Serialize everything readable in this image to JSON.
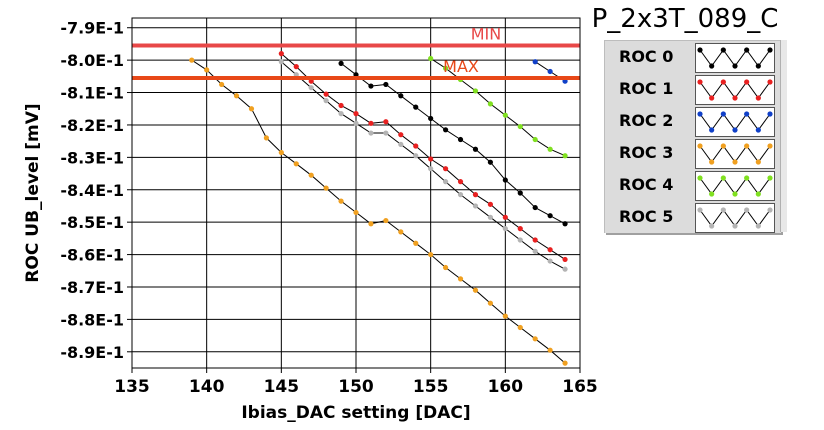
{
  "chart_data": {
    "type": "line",
    "title": "P_2x3T_089_C",
    "xlabel": "Ibias_DAC setting [DAC]",
    "ylabel": "ROC UB_level [mV]",
    "xlim": [
      135,
      165
    ],
    "ylim": [
      -0.895,
      -0.787
    ],
    "x_ticks": [
      135,
      140,
      145,
      150,
      155,
      160,
      165
    ],
    "y_ticks": [
      -0.79,
      -0.8,
      -0.81,
      -0.82,
      -0.83,
      -0.84,
      -0.85,
      -0.86,
      -0.87,
      -0.88,
      -0.89
    ],
    "y_tick_labels": [
      "-7.9E-1",
      "-8.0E-1",
      "-8.1E-1",
      "-8.2E-1",
      "-8.3E-1",
      "-8.4E-1",
      "-8.5E-1",
      "-8.6E-1",
      "-8.7E-1",
      "-8.8E-1",
      "-8.9E-1"
    ],
    "grid": true,
    "legend_position": "right",
    "reference_lines": [
      {
        "name": "MIN",
        "y": -0.7955,
        "color": "#e84848"
      },
      {
        "name": "MAX",
        "y": -0.8055,
        "color": "#e84818"
      }
    ],
    "series": [
      {
        "name": "ROC 0",
        "color": "#000000",
        "x": [
          149,
          150,
          151,
          152,
          153,
          154,
          155,
          156,
          157,
          158,
          159,
          160,
          161,
          162,
          163,
          164
        ],
        "y": [
          -0.801,
          -0.8045,
          -0.808,
          -0.8075,
          -0.811,
          -0.8145,
          -0.818,
          -0.8215,
          -0.8245,
          -0.8275,
          -0.8315,
          -0.837,
          -0.841,
          -0.8455,
          -0.848,
          -0.8505
        ]
      },
      {
        "name": "ROC 1",
        "color": "#e82020",
        "x": [
          145,
          146,
          147,
          148,
          149,
          150,
          151,
          152,
          153,
          154,
          155,
          156,
          157,
          158,
          159,
          160,
          161,
          162,
          163,
          164
        ],
        "y": [
          -0.798,
          -0.802,
          -0.8065,
          -0.8105,
          -0.814,
          -0.8165,
          -0.8195,
          -0.819,
          -0.823,
          -0.8265,
          -0.8305,
          -0.8335,
          -0.8375,
          -0.8415,
          -0.8445,
          -0.8485,
          -0.852,
          -0.8555,
          -0.8585,
          -0.8615
        ]
      },
      {
        "name": "ROC 2",
        "color": "#1040c8",
        "x": [
          162,
          163,
          164
        ],
        "y": [
          -0.8005,
          -0.8035,
          -0.8065
        ]
      },
      {
        "name": "ROC 3",
        "color": "#f0a020",
        "x": [
          139,
          140,
          141,
          142,
          143,
          144,
          145,
          146,
          147,
          148,
          149,
          150,
          151,
          152,
          153,
          154,
          155,
          156,
          157,
          158,
          159,
          160,
          161,
          162,
          163,
          164
        ],
        "y": [
          -0.8,
          -0.803,
          -0.8075,
          -0.811,
          -0.815,
          -0.824,
          -0.8285,
          -0.832,
          -0.8355,
          -0.8395,
          -0.8435,
          -0.847,
          -0.8505,
          -0.8495,
          -0.853,
          -0.8565,
          -0.86,
          -0.864,
          -0.8675,
          -0.871,
          -0.875,
          -0.879,
          -0.8825,
          -0.886,
          -0.8895,
          -0.8935
        ]
      },
      {
        "name": "ROC 4",
        "color": "#80e020",
        "x": [
          155,
          156,
          157,
          158,
          159,
          160,
          161,
          162,
          163,
          164
        ],
        "y": [
          -0.7995,
          -0.8025,
          -0.806,
          -0.8095,
          -0.8135,
          -0.817,
          -0.8205,
          -0.8245,
          -0.8275,
          -0.8295
        ]
      },
      {
        "name": "ROC 5",
        "color": "#b4b4b4",
        "x": [
          145,
          146,
          147,
          148,
          149,
          150,
          151,
          152,
          153,
          154,
          155,
          156,
          157,
          158,
          159,
          160,
          161,
          162,
          163,
          164
        ],
        "y": [
          -0.8005,
          -0.8045,
          -0.8085,
          -0.8125,
          -0.8165,
          -0.8195,
          -0.8225,
          -0.8225,
          -0.826,
          -0.8295,
          -0.8335,
          -0.8375,
          -0.8415,
          -0.845,
          -0.8485,
          -0.852,
          -0.8555,
          -0.859,
          -0.862,
          -0.8645
        ]
      }
    ]
  }
}
